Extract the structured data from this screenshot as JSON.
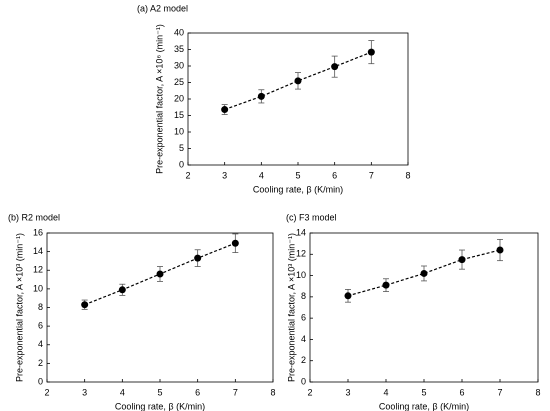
{
  "chart_data": [
    {
      "type": "scatter",
      "title": "(a) A2 model",
      "x_label": "Cooling rate, β (K/min)",
      "y_label": "Pre-exponential factor, A  ×10⁶ (min⁻¹)",
      "x": [
        3,
        4,
        5,
        6,
        7
      ],
      "values": [
        16.8,
        20.8,
        25.5,
        29.8,
        34.2
      ],
      "errors": [
        1.5,
        2,
        2.5,
        3.2,
        3.5
      ],
      "color": "#000000",
      "line": "dashed",
      "xlim": [
        2,
        8
      ],
      "xticks": [
        2,
        3,
        4,
        5,
        6,
        7,
        8
      ],
      "ylim": [
        0,
        40
      ],
      "yticks": [
        0,
        5,
        10,
        15,
        20,
        25,
        30,
        35,
        40
      ]
    },
    {
      "type": "scatter",
      "title": "(b) R2 model",
      "x_label": "Cooling rate, β (K/min)",
      "y_label": "Pre-exponential factor, A  ×10³ (min⁻¹)",
      "x": [
        3,
        4,
        5,
        6,
        7
      ],
      "values": [
        8.3,
        9.9,
        11.6,
        13.3,
        14.9
      ],
      "errors": [
        0.5,
        0.6,
        0.8,
        0.9,
        1.0
      ],
      "color": "#000000",
      "line": "dashed",
      "xlim": [
        2,
        8
      ],
      "xticks": [
        2,
        3,
        4,
        5,
        6,
        7,
        8
      ],
      "ylim": [
        0,
        16
      ],
      "yticks": [
        0,
        2,
        4,
        6,
        8,
        10,
        12,
        14,
        16
      ]
    },
    {
      "type": "scatter",
      "title": "(c) F3 model",
      "x_label": "Cooling rate, β (K/min)",
      "y_label": "Pre-exponential factor, A  ×10³ (min⁻¹)",
      "x": [
        3,
        4,
        5,
        6,
        7
      ],
      "values": [
        8.1,
        9.1,
        10.2,
        11.5,
        12.4
      ],
      "errors": [
        0.6,
        0.6,
        0.7,
        0.9,
        1.0
      ],
      "color": "#000000",
      "line": "dashed",
      "xlim": [
        2,
        8
      ],
      "xticks": [
        2,
        3,
        4,
        5,
        6,
        7,
        8
      ],
      "ylim": [
        0,
        14
      ],
      "yticks": [
        0,
        2,
        4,
        6,
        8,
        10,
        12,
        14
      ]
    }
  ]
}
